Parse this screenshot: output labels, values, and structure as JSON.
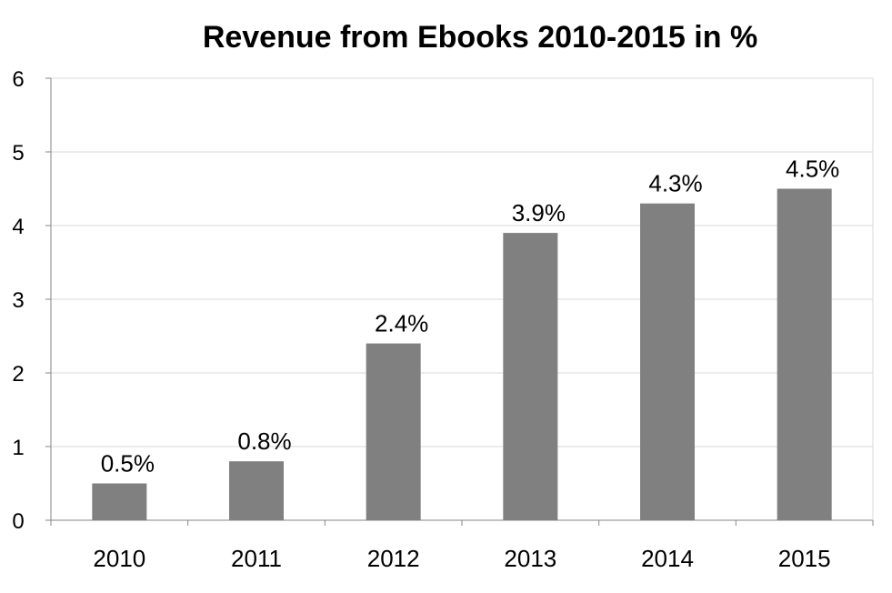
{
  "chart_data": {
    "type": "bar",
    "title": "Revenue from Ebooks 2010-2015 in %",
    "categories": [
      "2010",
      "2011",
      "2012",
      "2013",
      "2014",
      "2015"
    ],
    "values": [
      0.5,
      0.8,
      2.4,
      3.9,
      4.3,
      4.5
    ],
    "data_labels": [
      "0.5%",
      "0.8%",
      "2.4%",
      "3.9%",
      "4.3%",
      "4.5%"
    ],
    "y_ticks": [
      "0",
      "1",
      "2",
      "3",
      "4",
      "5",
      "6"
    ],
    "xlabel": "",
    "ylabel": "",
    "ylim": [
      0,
      6
    ],
    "grid": true,
    "legend": "none",
    "bar_color": "#808080"
  }
}
